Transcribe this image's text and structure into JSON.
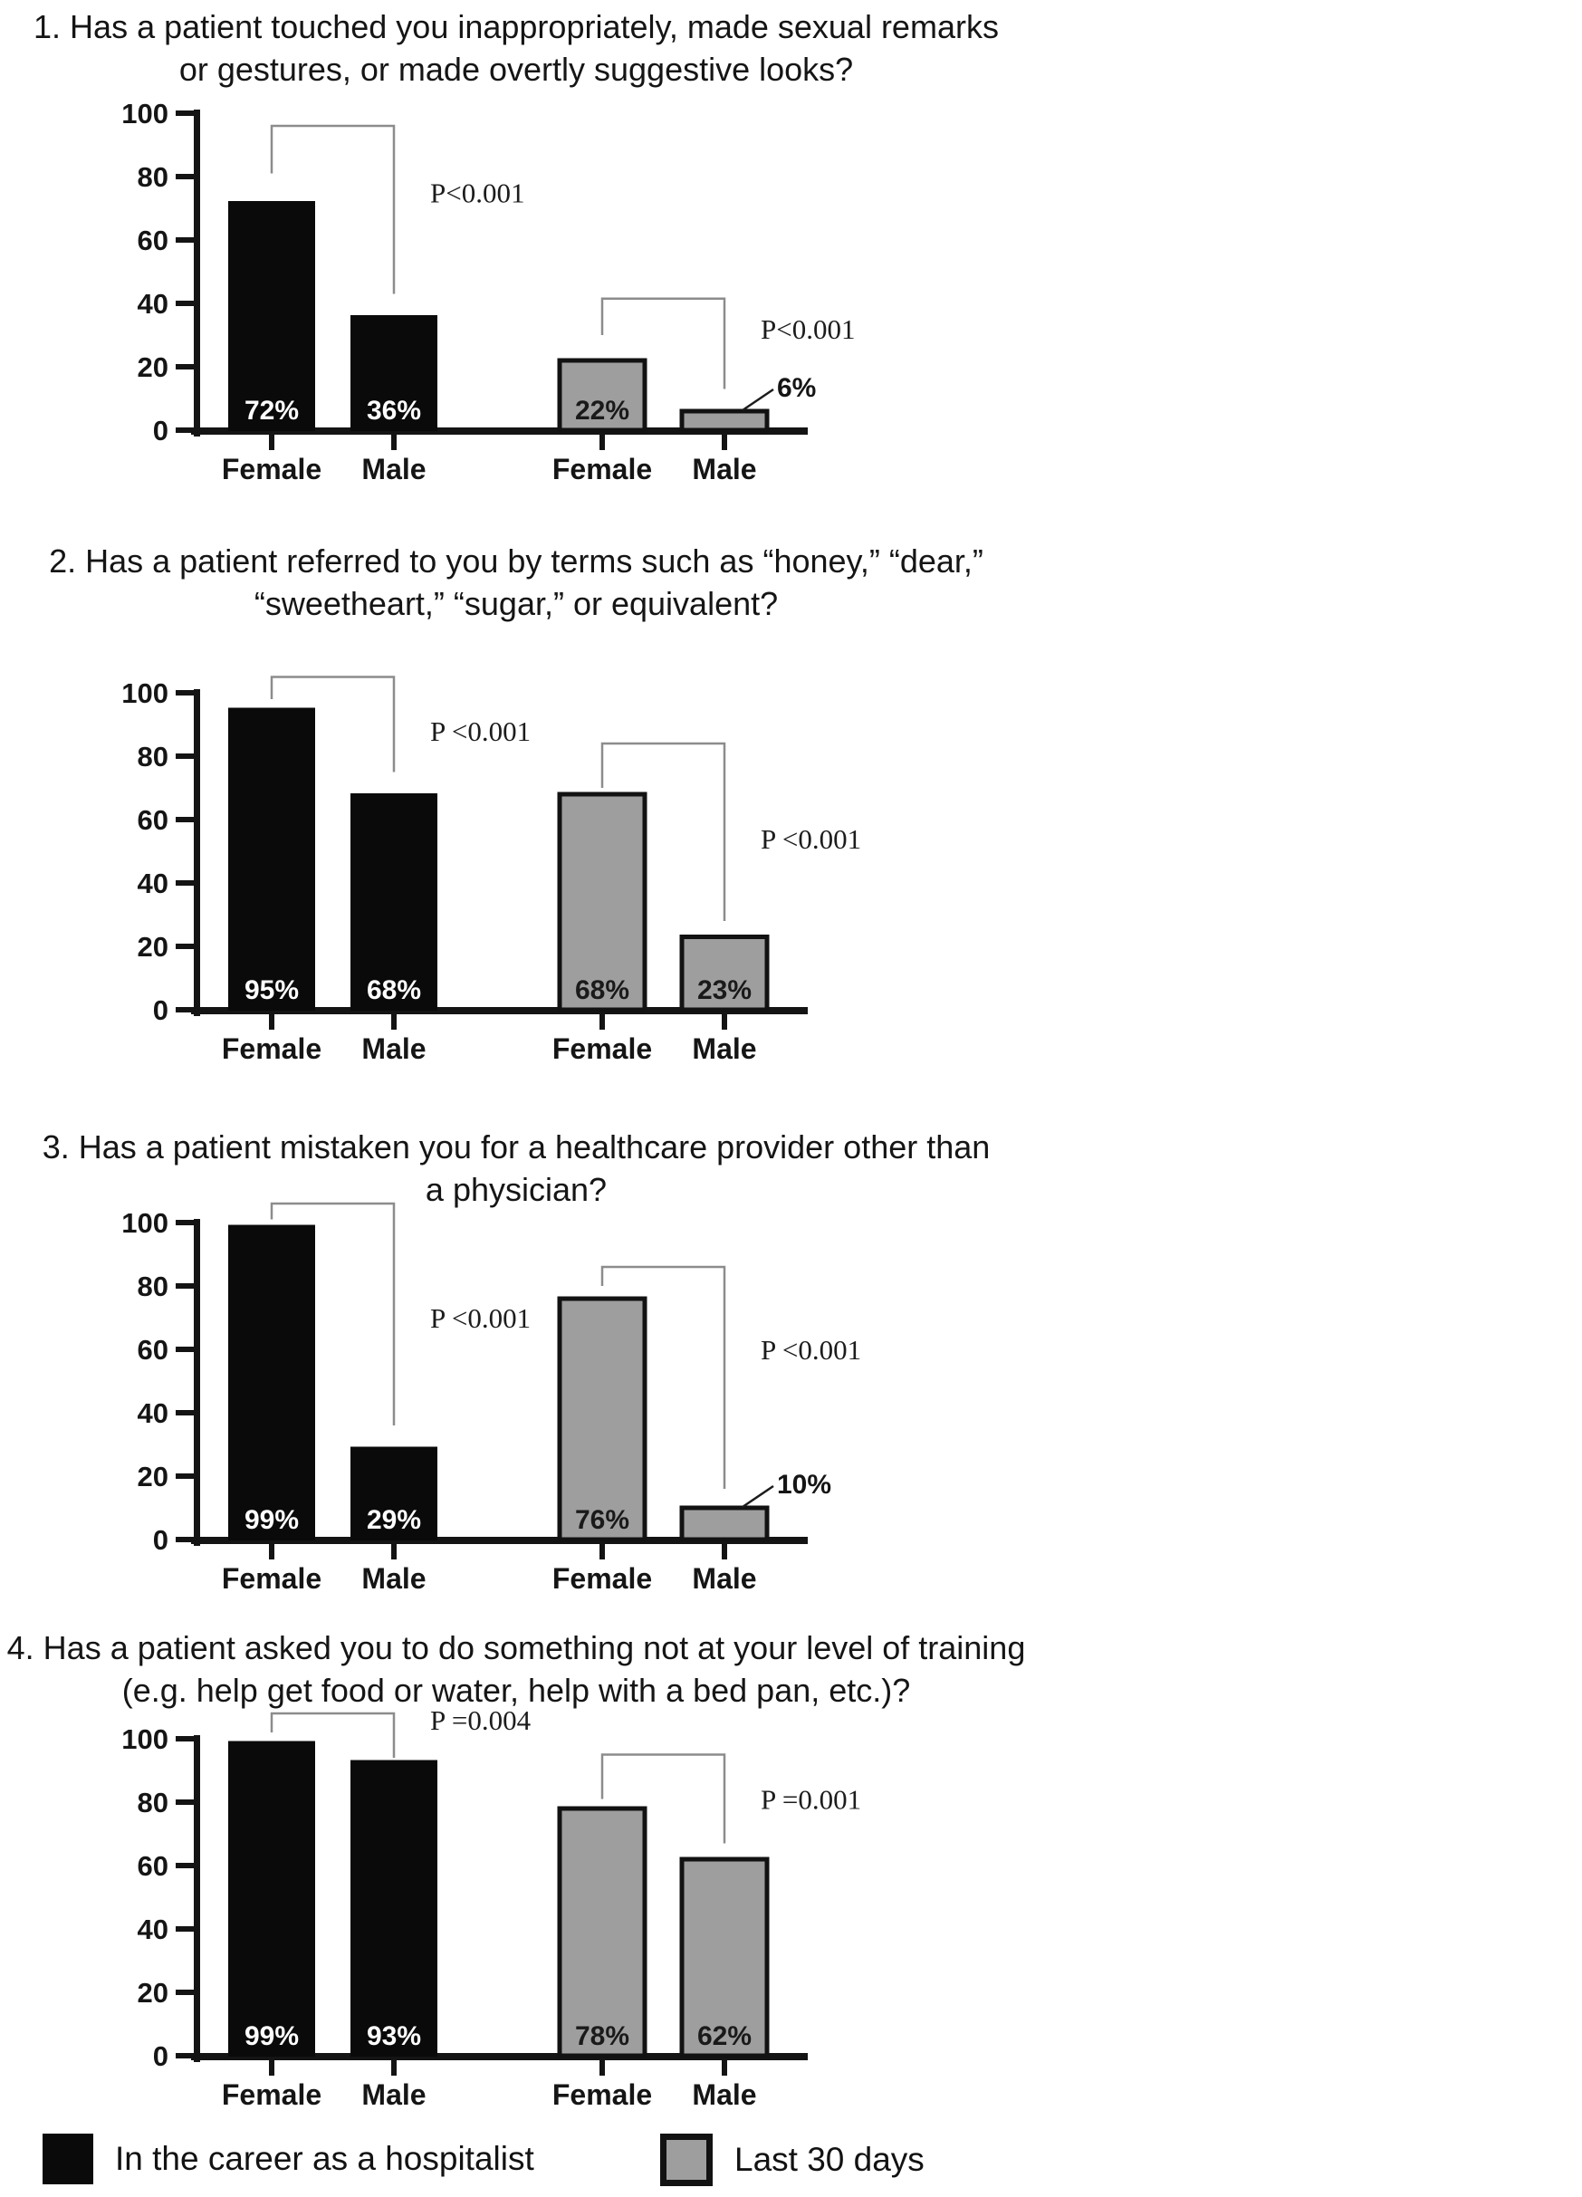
{
  "page": {
    "background": "#ffffff"
  },
  "colors": {
    "career_fill": "#0a0a0a",
    "recent_fill": "#9e9e9e",
    "bar_border": "#121212",
    "axis": "#141414",
    "bracket": "#8c8c8c",
    "text": "#151515",
    "label_on_dark": "#ffffff",
    "label_on_light": "#1a1a1a"
  },
  "legend": {
    "items": [
      {
        "label": "In the career as a hospitalist",
        "swatch": "career"
      },
      {
        "label": "Last 30 days",
        "swatch": "recent"
      }
    ]
  },
  "chart_data": [
    {
      "type": "bar",
      "title_lines": [
        "1. Has a patient touched you inappropriately, made sexual remarks",
        "or gestures, or made overtly suggestive looks?"
      ],
      "xlabel": "",
      "ylabel": "",
      "ylim": [
        0,
        100
      ],
      "yticks": [
        0,
        20,
        40,
        60,
        80,
        100
      ],
      "categories": [
        "Female",
        "Male",
        "Female",
        "Male"
      ],
      "series": [
        {
          "name": "In the career as a hospitalist",
          "group": "career",
          "values": [
            72,
            36
          ]
        },
        {
          "name": "Last 30 days",
          "group": "recent",
          "values": [
            22,
            6
          ]
        }
      ],
      "bars": [
        {
          "category": "Female",
          "group": "career",
          "value": 72,
          "label": "72%",
          "label_style": "inside"
        },
        {
          "category": "Male",
          "group": "career",
          "value": 36,
          "label": "36%",
          "label_style": "inside"
        },
        {
          "category": "Female",
          "group": "recent",
          "value": 22,
          "label": "22%",
          "label_style": "inside"
        },
        {
          "category": "Male",
          "group": "recent",
          "value": 6,
          "label": "6%",
          "label_style": "callout"
        }
      ],
      "brackets": [
        {
          "from": 0,
          "to": 1,
          "left_attach": 81,
          "top": 96,
          "right_attach": 43,
          "p_label": "P<0.001",
          "label_at": 75
        },
        {
          "from": 2,
          "to": 3,
          "left_attach": 30,
          "top": 41.5,
          "right_attach": 13,
          "p_label": "P<0.001",
          "label_at": 32
        }
      ]
    },
    {
      "type": "bar",
      "title_lines": [
        "2. Has a patient referred to you by terms such as “honey,” “dear,”",
        "“sweetheart,” “sugar,” or equivalent?"
      ],
      "xlabel": "",
      "ylabel": "",
      "ylim": [
        0,
        100
      ],
      "yticks": [
        0,
        20,
        40,
        60,
        80,
        100
      ],
      "categories": [
        "Female",
        "Male",
        "Female",
        "Male"
      ],
      "series": [
        {
          "name": "In the career as a hospitalist",
          "group": "career",
          "values": [
            95,
            68
          ]
        },
        {
          "name": "Last 30 days",
          "group": "recent",
          "values": [
            68,
            23
          ]
        }
      ],
      "bars": [
        {
          "category": "Female",
          "group": "career",
          "value": 95,
          "label": "95%",
          "label_style": "inside"
        },
        {
          "category": "Male",
          "group": "career",
          "value": 68,
          "label": "68%",
          "label_style": "inside"
        },
        {
          "category": "Female",
          "group": "recent",
          "value": 68,
          "label": "68%",
          "label_style": "inside"
        },
        {
          "category": "Male",
          "group": "recent",
          "value": 23,
          "label": "23%",
          "label_style": "inside"
        }
      ],
      "brackets": [
        {
          "from": 0,
          "to": 1,
          "left_attach": 98,
          "top": 105,
          "right_attach": 75,
          "p_label": "P <0.001",
          "label_at": 88
        },
        {
          "from": 2,
          "to": 3,
          "left_attach": 70,
          "top": 84,
          "right_attach": 28,
          "p_label": "P <0.001",
          "label_at": 54
        }
      ]
    },
    {
      "type": "bar",
      "title_lines": [
        "3. Has a patient mistaken you for a healthcare provider other than",
        "a physician?"
      ],
      "xlabel": "",
      "ylabel": "",
      "ylim": [
        0,
        100
      ],
      "yticks": [
        0,
        20,
        40,
        60,
        80,
        100
      ],
      "categories": [
        "Female",
        "Male",
        "Female",
        "Male"
      ],
      "series": [
        {
          "name": "In the career as a hospitalist",
          "group": "career",
          "values": [
            99,
            29
          ]
        },
        {
          "name": "Last 30 days",
          "group": "recent",
          "values": [
            76,
            10
          ]
        }
      ],
      "bars": [
        {
          "category": "Female",
          "group": "career",
          "value": 99,
          "label": "99%",
          "label_style": "inside"
        },
        {
          "category": "Male",
          "group": "career",
          "value": 29,
          "label": "29%",
          "label_style": "inside"
        },
        {
          "category": "Female",
          "group": "recent",
          "value": 76,
          "label": "76%",
          "label_style": "inside"
        },
        {
          "category": "Male",
          "group": "recent",
          "value": 10,
          "label": "10%",
          "label_style": "callout"
        }
      ],
      "brackets": [
        {
          "from": 0,
          "to": 1,
          "left_attach": 101,
          "top": 106,
          "right_attach": 36,
          "p_label": "P <0.001",
          "label_at": 70
        },
        {
          "from": 2,
          "to": 3,
          "left_attach": 80,
          "top": 86,
          "right_attach": 16,
          "p_label": "P <0.001",
          "label_at": 60
        }
      ]
    },
    {
      "type": "bar",
      "title_lines": [
        "4. Has a patient asked you to do something not at your level of training",
        "(e.g. help get food or water, help with a bed pan, etc.)?"
      ],
      "xlabel": "",
      "ylabel": "",
      "ylim": [
        0,
        100
      ],
      "yticks": [
        0,
        20,
        40,
        60,
        80,
        100
      ],
      "categories": [
        "Female",
        "Male",
        "Female",
        "Male"
      ],
      "series": [
        {
          "name": "In the career as a hospitalist",
          "group": "career",
          "values": [
            99,
            93
          ]
        },
        {
          "name": "Last 30 days",
          "group": "recent",
          "values": [
            78,
            62
          ]
        }
      ],
      "bars": [
        {
          "category": "Female",
          "group": "career",
          "value": 99,
          "label": "99%",
          "label_style": "inside"
        },
        {
          "category": "Male",
          "group": "career",
          "value": 93,
          "label": "93%",
          "label_style": "inside"
        },
        {
          "category": "Female",
          "group": "recent",
          "value": 78,
          "label": "78%",
          "label_style": "inside"
        },
        {
          "category": "Male",
          "group": "recent",
          "value": 62,
          "label": "62%",
          "label_style": "inside"
        }
      ],
      "brackets": [
        {
          "from": 0,
          "to": 1,
          "left_attach": 102,
          "top": 108,
          "right_attach": 94,
          "p_label": "P =0.004",
          "label_at": 106
        },
        {
          "from": 2,
          "to": 3,
          "left_attach": 81,
          "top": 95,
          "right_attach": 67,
          "p_label": "P =0.001",
          "label_at": 81
        }
      ]
    }
  ]
}
